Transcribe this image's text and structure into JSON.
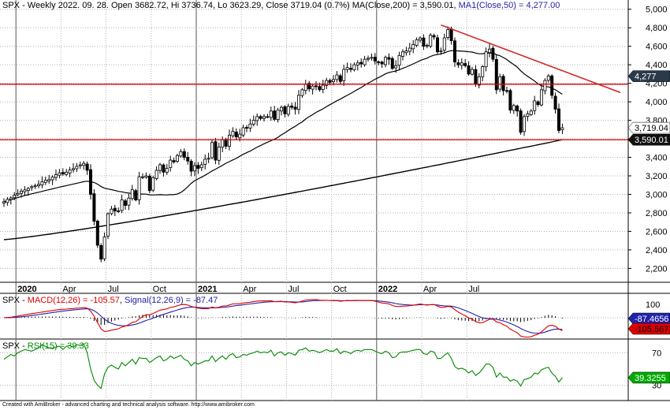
{
  "header": {
    "main": {
      "symbol": "SPX",
      "text": " - Weekly 2022. 09. 28. Open 3682.72, Hi 3736.74, Lo 3623.29, Close 3719.04 (0.7%) MA(Close,200) = 3,590.01, ",
      "ma1": "MA1(Close,50) = 4,277.00"
    },
    "macd": {
      "symbol": "SPX",
      "sep": " - ",
      "macd": "MACD(12,26) = -105.57",
      "sep2": ", ",
      "signal": "Signal(12,26,9) = -87.47"
    },
    "rsi": {
      "symbol": "SPX",
      "sep": " - ",
      "rsi": "RSI(15) = 39.33"
    }
  },
  "footer": "Created with AmiBroker - advanced charting and technical analysis software. http://www.amibroker.com",
  "colors": {
    "up": "#ffffff",
    "down": "#000000",
    "ma": "#000000",
    "resistance": "#dd0000",
    "trendline": "#cc2222",
    "macd": "#dd0000",
    "signal": "#2222aa",
    "rsi": "#008800",
    "grid": "#b0b0b0"
  },
  "chart_data": [
    {
      "type": "candlestick",
      "title": "SPX - Weekly",
      "x_labels": [
        "2020",
        "Apr",
        "Jul",
        "Oct",
        "2021",
        "Apr",
        "Jul",
        "Oct",
        "2022",
        "Apr",
        "Jul"
      ],
      "y_ticks": [
        2200,
        2400,
        2600,
        2800,
        3000,
        3200,
        3400,
        3600,
        3800,
        4000,
        4200,
        4400,
        4600,
        4800,
        5000
      ],
      "y_tick_labels": [
        "2,200",
        "2,400",
        "2,600",
        "2,800",
        "3,000",
        "3,200",
        "3,400",
        "3,600",
        "3,800",
        "4,000",
        "4,200",
        "4,400",
        "4,600",
        "4,800",
        "5,000"
      ],
      "ylim": [
        2050,
        5100
      ],
      "closes": [
        2920,
        2945,
        2962,
        2990,
        3010,
        3035,
        3048,
        3063,
        3082,
        3092,
        3108,
        3135,
        3152,
        3160,
        3188,
        3212,
        3232,
        3220,
        3240,
        3263,
        3278,
        3302,
        3318,
        3335,
        3260,
        3000,
        2710,
        2450,
        2300,
        2540,
        2790,
        2840,
        2820,
        2820,
        2940,
        2880,
        2960,
        3050,
        2940,
        3190,
        3190,
        3200,
        3040,
        3180,
        3260,
        3320,
        3240,
        3280,
        3370,
        3350,
        3420,
        3460,
        3400,
        3360,
        3250,
        3310,
        3280,
        3320,
        3380,
        3390,
        3560,
        3370,
        3510,
        3590,
        3520,
        3640,
        3680,
        3620,
        3650,
        3720,
        3720,
        3760,
        3800,
        3840,
        3820,
        3840,
        3840,
        3900,
        3810,
        3910,
        3940,
        3870,
        3950,
        3940,
        3920,
        4070,
        4130,
        4190,
        4140,
        4170,
        4170,
        4130,
        4180,
        4230,
        4210,
        4240,
        4290,
        4220,
        4350,
        4370,
        4350,
        4400,
        4420,
        4410,
        4460,
        4470,
        4480,
        4440,
        4430,
        4410,
        4480,
        4460,
        4360,
        4390,
        4500,
        4540,
        4550,
        4580,
        4620,
        4670,
        4690,
        4600,
        4610,
        4720,
        4700,
        4540,
        4550,
        4690,
        4780,
        4660,
        4430,
        4400,
        4420,
        4390,
        4300,
        4350,
        4190,
        4270,
        4380,
        4540,
        4570,
        4460,
        4130,
        4270,
        4120,
        4120,
        3910,
        3960,
        3900,
        3670,
        3840,
        3870,
        3900,
        4010,
        3970,
        4130,
        4230,
        4280,
        4070,
        3920,
        3690,
        3719
      ],
      "ma200_label": "3,590.01",
      "ma50_label": "4,277",
      "price_label": "3,719.04",
      "horizontal_levels": [
        4190,
        3590
      ]
    },
    {
      "type": "line",
      "title": "SPX - MACD(12,26) = -105.57, Signal(12,26,9) = -87.47",
      "y_tick_labels": [
        "100"
      ],
      "labels": [
        "-87.4656",
        "-105.567"
      ]
    },
    {
      "type": "line",
      "title": "SPX - RSI(15) = 39.33",
      "y_ticks": [
        30,
        70
      ],
      "y_tick_labels": [
        "30",
        "70"
      ],
      "last_label": "39.3255",
      "values": [
        62,
        65,
        68,
        66,
        70,
        72,
        74,
        73,
        72,
        74,
        76,
        80,
        78,
        76,
        75,
        77,
        78,
        74,
        78,
        79,
        77,
        80,
        79,
        81,
        70,
        50,
        36,
        30,
        26,
        44,
        52,
        55,
        52,
        50,
        58,
        54,
        58,
        62,
        56,
        64,
        63,
        63,
        58,
        61,
        64,
        66,
        60,
        62,
        66,
        63,
        65,
        67,
        62,
        60,
        54,
        58,
        56,
        58,
        60,
        60,
        66,
        59,
        63,
        66,
        62,
        67,
        69,
        64,
        65,
        68,
        67,
        69,
        70,
        72,
        70,
        71,
        70,
        73,
        66,
        70,
        71,
        67,
        70,
        69,
        67,
        73,
        74,
        76,
        72,
        73,
        72,
        70,
        72,
        74,
        72,
        72,
        75,
        69,
        72,
        71,
        69,
        72,
        73,
        72,
        74,
        74,
        74,
        72,
        70,
        69,
        72,
        70,
        64,
        65,
        70,
        71,
        71,
        72,
        73,
        74,
        74,
        69,
        68,
        72,
        71,
        63,
        63,
        67,
        70,
        63,
        53,
        50,
        51,
        49,
        45,
        48,
        42,
        45,
        50,
        56,
        56,
        52,
        40,
        45,
        40,
        40,
        35,
        37,
        35,
        29,
        37,
        38,
        40,
        45,
        44,
        49,
        51,
        52,
        45,
        41,
        34,
        39.3
      ]
    }
  ]
}
